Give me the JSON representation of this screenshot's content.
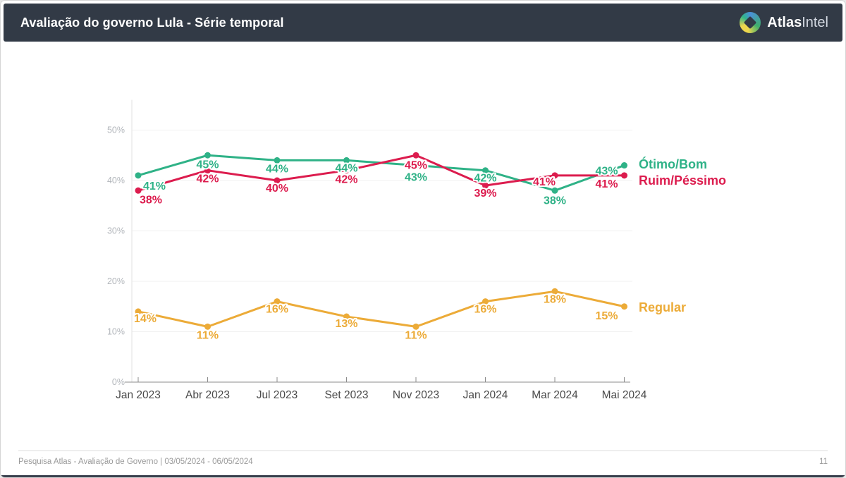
{
  "header": {
    "title": "Avaliação do governo Lula - Série temporal",
    "logo": {
      "brand_bold": "Atlas",
      "brand_light": "Intel"
    }
  },
  "chart_data": {
    "type": "line",
    "title": "Avaliação do governo Lula - Série temporal",
    "categories": [
      "Jan 2023",
      "Abr 2023",
      "Jul 2023",
      "Set 2023",
      "Nov 2023",
      "Jan 2024",
      "Mar 2024",
      "Mai 2024"
    ],
    "series": [
      {
        "name": "Ótimo/Bom",
        "color": "#2fb287",
        "values": [
          41,
          45,
          44,
          44,
          43,
          42,
          38,
          43
        ]
      },
      {
        "name": "Ruim/Péssimo",
        "color": "#dc1c4e",
        "values": [
          38,
          42,
          40,
          42,
          45,
          39,
          41,
          41
        ]
      },
      {
        "name": "Regular",
        "color": "#ecab38",
        "values": [
          14,
          11,
          16,
          13,
          11,
          16,
          18,
          15
        ]
      }
    ],
    "value_suffix": "%",
    "y_ticks": [
      "0%",
      "10%",
      "20%",
      "30%",
      "40%",
      "50%"
    ],
    "ylim": [
      0,
      56
    ],
    "grid": true,
    "legend_position": "right",
    "xlabel": "",
    "ylabel": ""
  },
  "footer": {
    "source": "Pesquisa Atlas - Avaliação de Governo | 03/05/2024 - 06/05/2024",
    "page_number": "11"
  }
}
